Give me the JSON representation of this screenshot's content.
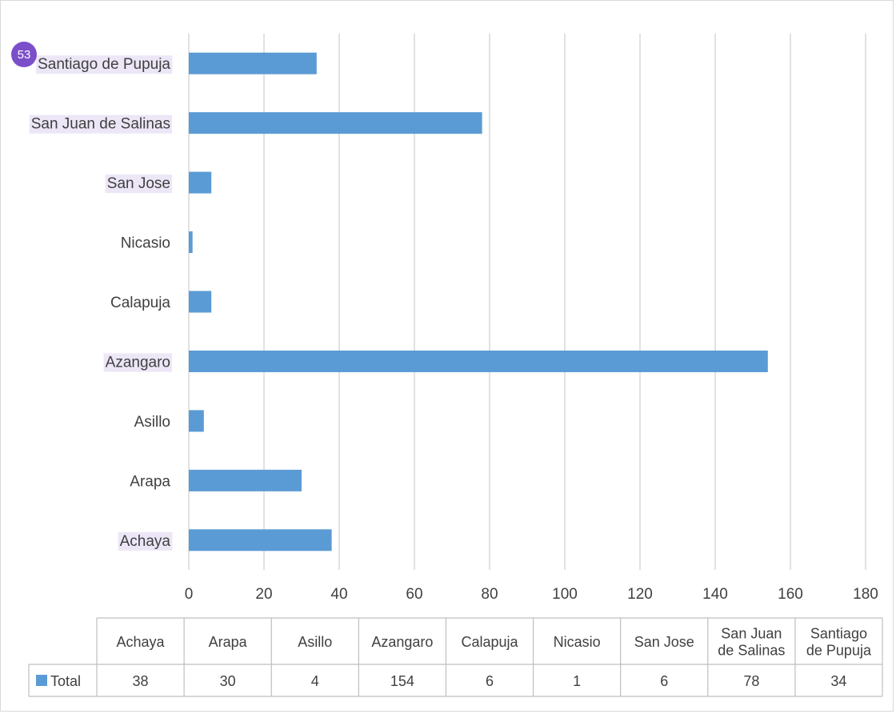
{
  "chart_data": {
    "type": "bar",
    "orientation": "horizontal",
    "categories": [
      "Achaya",
      "Arapa",
      "Asillo",
      "Azangaro",
      "Calapuja",
      "Nicasio",
      "San Jose",
      "San Juan de Salinas",
      "Santiago de Pupuja"
    ],
    "table_headers": [
      [
        "Achaya"
      ],
      [
        "Arapa"
      ],
      [
        "Asillo"
      ],
      [
        "Azangaro"
      ],
      [
        "Calapuja"
      ],
      [
        "Nicasio"
      ],
      [
        "San Jose"
      ],
      [
        "San Juan",
        "de Salinas"
      ],
      [
        "Santiago",
        "de Pupuja"
      ]
    ],
    "series": [
      {
        "name": "Total",
        "color": "#5b9bd5",
        "values": [
          38,
          30,
          4,
          154,
          6,
          1,
          6,
          78,
          34
        ]
      }
    ],
    "xlim": [
      0,
      180
    ],
    "xticks": [
      0,
      20,
      40,
      60,
      80,
      100,
      120,
      140,
      160,
      180
    ],
    "grid": true,
    "data_table": true,
    "highlighted_categories": [
      "Achaya",
      "Azangaro",
      "San Jose",
      "San Juan de Salinas",
      "Santiago de Pupuja"
    ]
  },
  "badge": {
    "text": "53",
    "color": "#7b4fc9"
  }
}
